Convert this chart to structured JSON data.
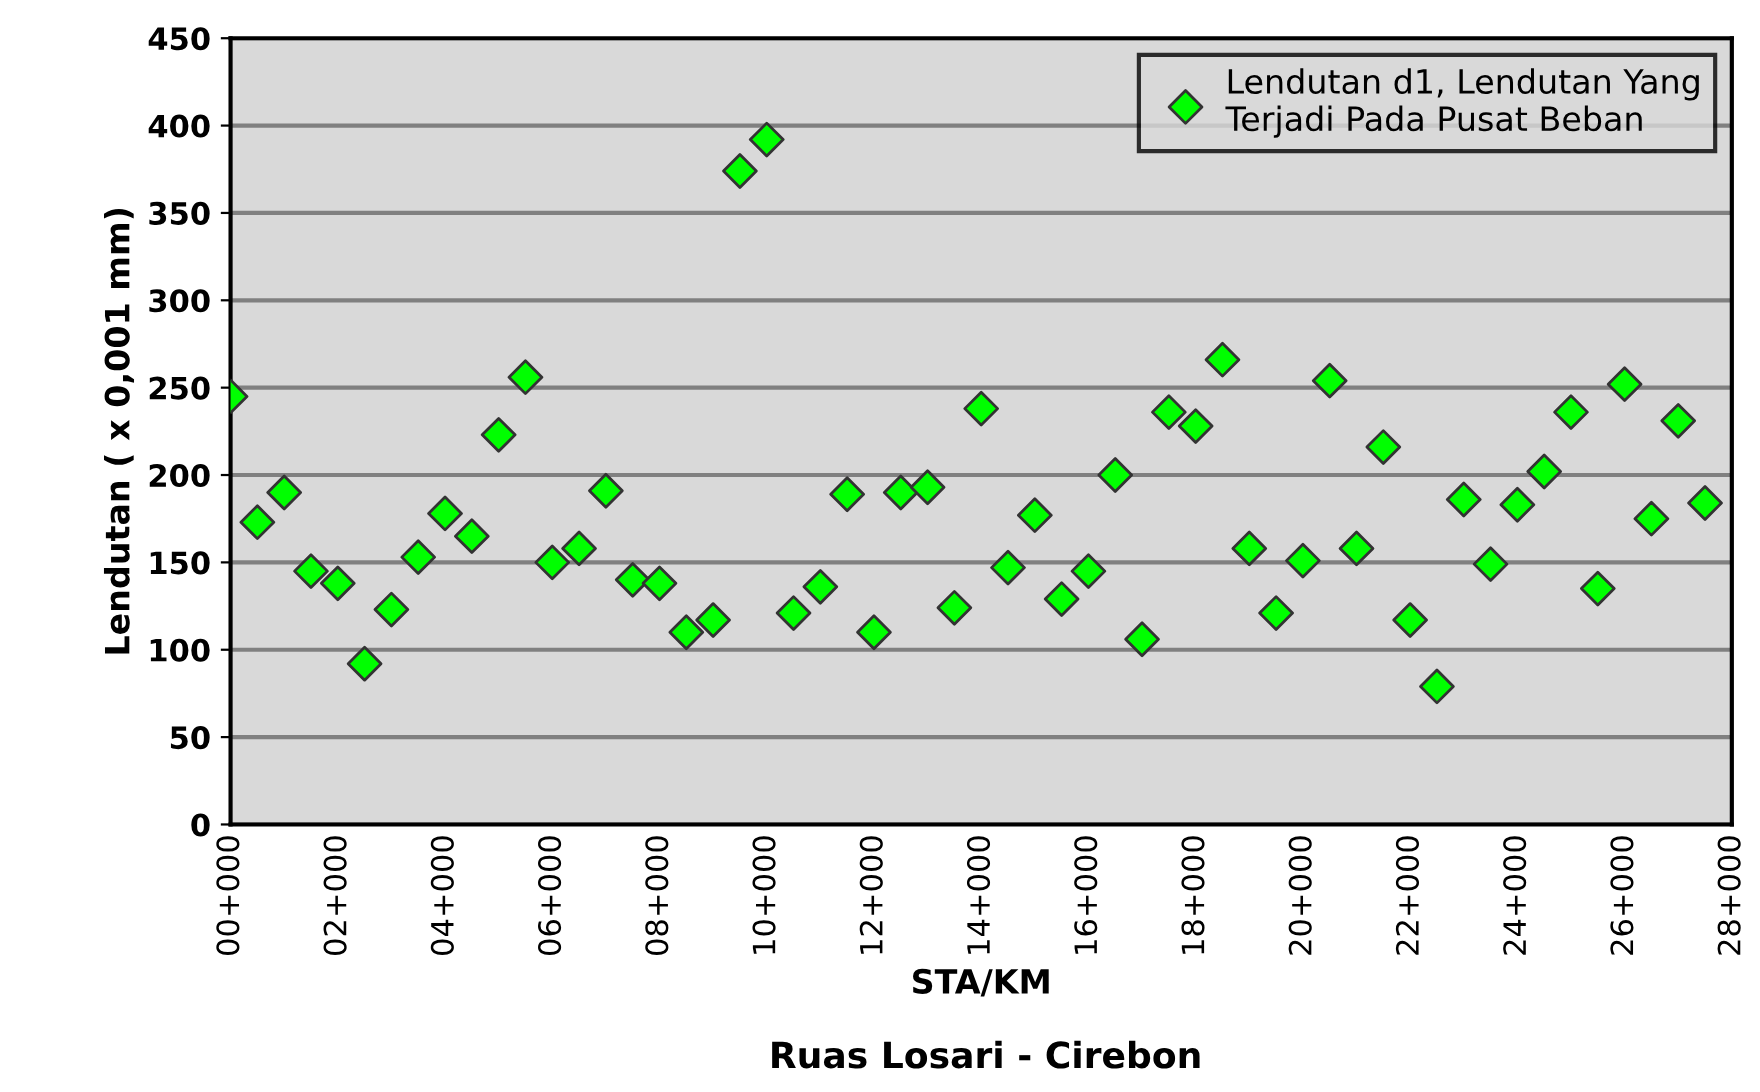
{
  "chart_data": {
    "type": "scatter",
    "xlabel": "STA/KM",
    "ylabel": "Lendutan ( x 0,001 mm)",
    "annotations": [
      "Ruas Losari - Cirebon"
    ],
    "categories": [
      "00+000",
      null,
      null,
      null,
      "02+000",
      null,
      null,
      null,
      "04+000",
      null,
      null,
      null,
      "06+000",
      null,
      null,
      null,
      "08+000",
      null,
      null,
      null,
      "10+000",
      null,
      null,
      null,
      "12+000",
      null,
      null,
      null,
      "14+000",
      null,
      null,
      null,
      "16+000",
      null,
      null,
      null,
      "18+000",
      null,
      null,
      null,
      "20+000",
      null,
      null,
      null,
      "22+000",
      null,
      null,
      null,
      "24+000",
      null,
      null,
      null,
      "26+000",
      null,
      null,
      null,
      "28+000"
    ],
    "series": [
      {
        "name": "Lendutan d1, Lendutan Yang\nTerjadi Pada Pusat Beban",
        "color": "#00ff00",
        "values": [
          245,
          173,
          190,
          145,
          138,
          92,
          123,
          153,
          178,
          165,
          223,
          256,
          150,
          158,
          191,
          140,
          138,
          110,
          117,
          374,
          392,
          121,
          136,
          189,
          110,
          190,
          193,
          124,
          238,
          147,
          177,
          129,
          145,
          200,
          106,
          236,
          228,
          266,
          158,
          121,
          151,
          254,
          158,
          216,
          117,
          79,
          186,
          149,
          183,
          202,
          236,
          135,
          252,
          175,
          231,
          184,
          null
        ]
      }
    ],
    "ylim": [
      0,
      450
    ],
    "yticks": [
      0,
      50,
      100,
      150,
      200,
      250,
      300,
      350,
      400,
      450
    ],
    "grid": "y",
    "legend": "top right",
    "marker": "diamond"
  }
}
